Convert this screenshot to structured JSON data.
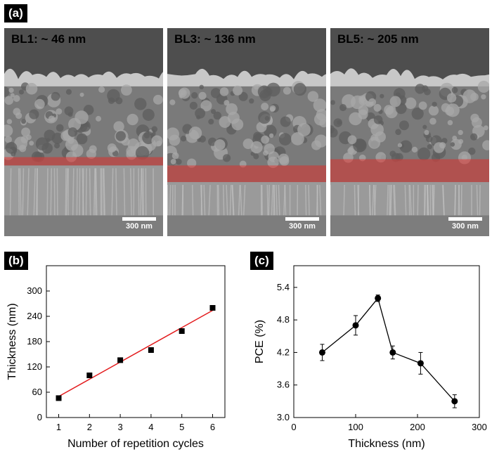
{
  "panel_a": {
    "tag": "(a)",
    "images": [
      {
        "label": "BL1: ~ 46 nm",
        "scale": "300 nm",
        "band_frac": [
          0.62,
          0.66
        ]
      },
      {
        "label": "BL3: ~ 136 nm",
        "scale": "300 nm",
        "band_frac": [
          0.66,
          0.74
        ]
      },
      {
        "label": "BL5: ~ 205 nm",
        "scale": "300 nm",
        "band_frac": [
          0.63,
          0.74
        ]
      }
    ]
  },
  "chart_data": [
    {
      "tag": "(b)",
      "type": "scatter",
      "xlabel": "Number of repetition cycles",
      "ylabel": "Thickness (nm)",
      "x": [
        1,
        2,
        3,
        4,
        5,
        6
      ],
      "y": [
        46,
        100,
        136,
        160,
        205,
        260
      ],
      "fit": {
        "x": [
          1,
          6
        ],
        "y": [
          50,
          254
        ],
        "color": "#e31a1c"
      },
      "xlim": [
        0.6,
        6.4
      ],
      "ylim": [
        0,
        360
      ],
      "xticks": [
        1,
        2,
        3,
        4,
        5,
        6
      ],
      "yticks": [
        0,
        60,
        120,
        180,
        240,
        300
      ]
    },
    {
      "tag": "(c)",
      "type": "line",
      "xlabel": "Thickness  (nm)",
      "ylabel": "PCE (%)",
      "x": [
        46,
        100,
        136,
        160,
        205,
        260
      ],
      "y": [
        4.2,
        4.7,
        5.2,
        4.2,
        4.0,
        3.3
      ],
      "err": [
        0.15,
        0.18,
        0.06,
        0.12,
        0.2,
        0.12
      ],
      "xlim": [
        0,
        300
      ],
      "ylim": [
        3.0,
        5.8
      ],
      "xticks": [
        0,
        100,
        200,
        300
      ],
      "yticks": [
        3.0,
        3.6,
        4.2,
        4.8,
        5.4
      ]
    }
  ]
}
